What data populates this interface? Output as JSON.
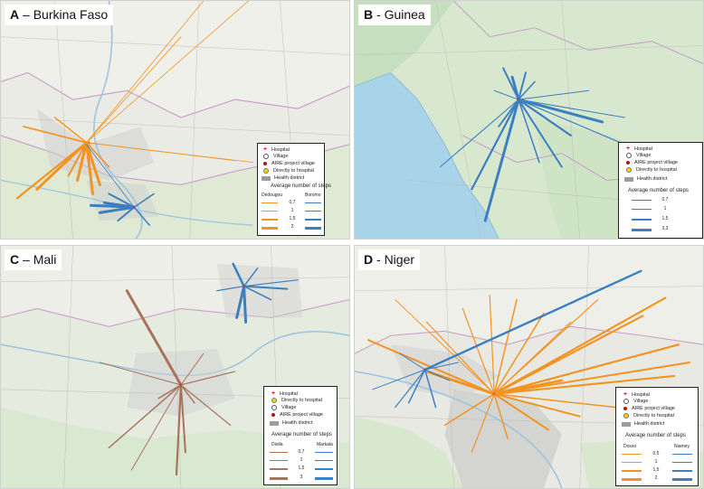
{
  "colors": {
    "orange": "#f29322",
    "blue": "#3a7fc1",
    "brown": "#a7735a",
    "map_land": "#ebebe6",
    "map_green": "#d7e8cf",
    "map_water": "#a9d3e8"
  },
  "legend_common": {
    "hospital": "Hospital",
    "village": "Village",
    "aire": "AIRE project village",
    "direct": "Directly to hospital",
    "health_district": "Health district",
    "avg_steps": "Average number of steps"
  },
  "panels": {
    "a": {
      "letter": "A",
      "name": " – Burkina Faso",
      "legend": {
        "col1": "Dédougou",
        "col2": "Boromo",
        "values": [
          "0,7",
          "1",
          "1,5",
          "2"
        ]
      }
    },
    "b": {
      "letter": "B",
      "name": " - Guinea",
      "legend": {
        "values": [
          "0,7",
          "1",
          "1,5",
          "3,3"
        ]
      }
    },
    "c": {
      "letter": "C",
      "name": " – Mali",
      "legend": {
        "col1": "Diolla",
        "col2": "Markala",
        "values": [
          "0,7",
          "1",
          "1,5",
          "3"
        ]
      }
    },
    "d": {
      "letter": "D",
      "name": " - Niger",
      "legend": {
        "col1": "Dosso",
        "col2": "Niamey",
        "values": [
          "0,5",
          "1",
          "1,5",
          "2"
        ]
      }
    }
  }
}
